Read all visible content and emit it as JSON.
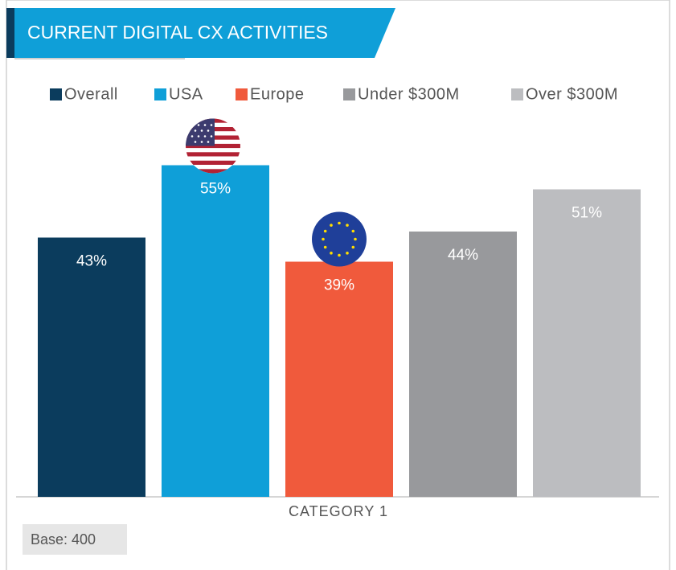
{
  "chart_data": {
    "type": "bar",
    "title": "CURRENT DIGITAL CX ACTIVITIES",
    "categories": [
      "CATEGORY 1"
    ],
    "series": [
      {
        "name": "Overall",
        "color": "#0b3c5d",
        "values": [
          43
        ],
        "value_labels": [
          "43%"
        ]
      },
      {
        "name": "USA",
        "color": "#0f9fd8",
        "values": [
          55
        ],
        "value_labels": [
          "55%"
        ]
      },
      {
        "name": "Europe",
        "color": "#f05a3c",
        "values": [
          39
        ],
        "value_labels": [
          "39%"
        ]
      },
      {
        "name": "Under $300M",
        "color": "#98999c",
        "values": [
          44
        ],
        "value_labels": [
          "44%"
        ]
      },
      {
        "name": "Over $300M",
        "color": "#bcbdc0",
        "values": [
          51
        ],
        "value_labels": [
          "51%"
        ]
      }
    ],
    "footnote": "Base: 400"
  }
}
